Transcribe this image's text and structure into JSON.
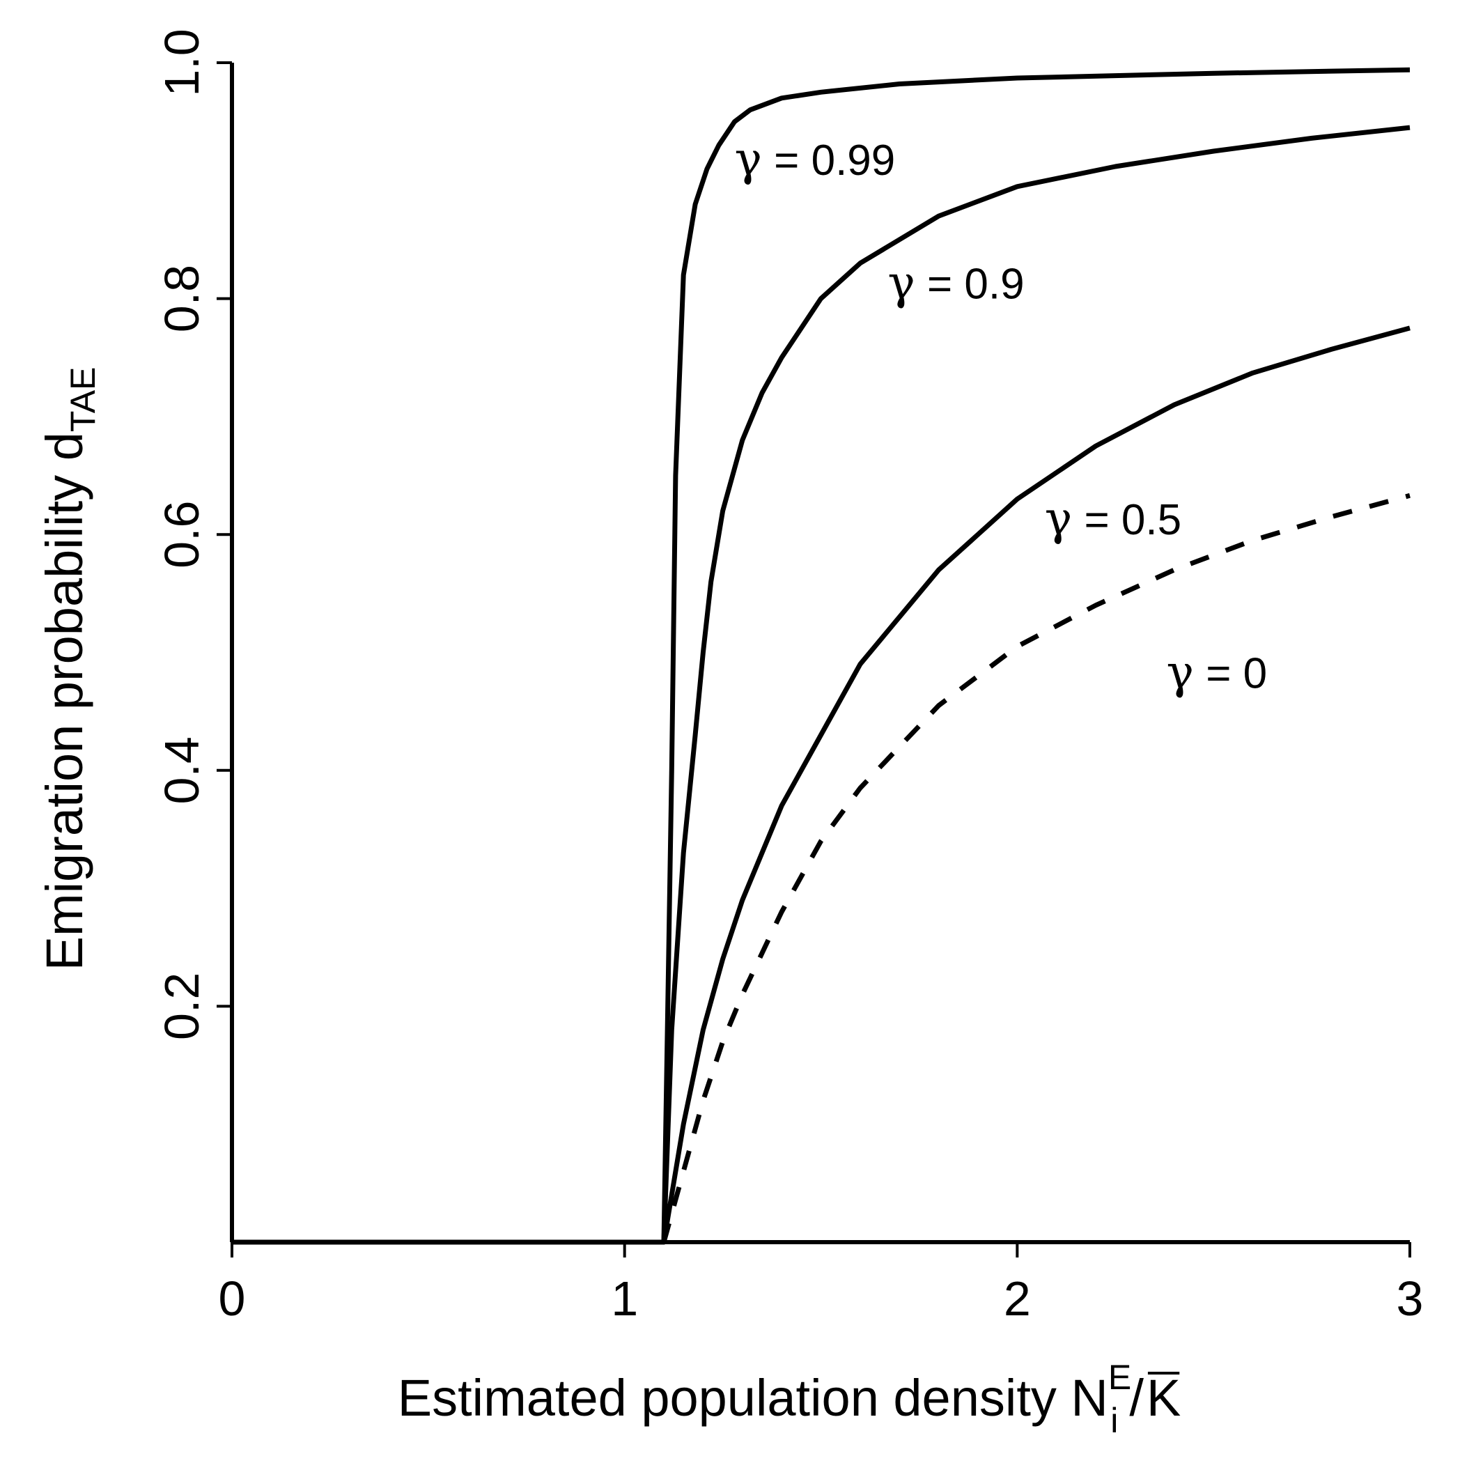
{
  "chart_data": {
    "type": "line",
    "xlabel": {
      "text": "Estimated population density N",
      "sub": "i",
      "sup": "E",
      "slash": "/",
      "kbar": "K"
    },
    "ylabel": {
      "text": "Emigration probability d",
      "sub": "TAE"
    },
    "xlim": [
      0,
      3
    ],
    "ylim": [
      0,
      1
    ],
    "x_ticks": [
      {
        "value": 0,
        "label": "0"
      },
      {
        "value": 1,
        "label": "1"
      },
      {
        "value": 2,
        "label": "2"
      },
      {
        "value": 3,
        "label": "3"
      }
    ],
    "y_ticks": [
      {
        "value": 0.2,
        "label": "0.2"
      },
      {
        "value": 0.4,
        "label": "0.4"
      },
      {
        "value": 0.6,
        "label": "0.6"
      },
      {
        "value": 0.8,
        "label": "0.8"
      },
      {
        "value": 1.0,
        "label": "1.0"
      }
    ],
    "grid": false,
    "legend": "none",
    "series": [
      {
        "name": "γ = 0.99",
        "gamma_symbol": "γ",
        "label_text": " = 0.99",
        "dash": "solid",
        "label_at": [
          1.28,
          0.905
        ],
        "x": [
          0,
          1.1,
          1.11,
          1.12,
          1.13,
          1.15,
          1.18,
          1.21,
          1.24,
          1.28,
          1.32,
          1.4,
          1.5,
          1.7,
          2.0,
          2.5,
          3.0
        ],
        "y": [
          0,
          0,
          0.2,
          0.4,
          0.65,
          0.82,
          0.88,
          0.91,
          0.93,
          0.95,
          0.96,
          0.97,
          0.975,
          0.982,
          0.987,
          0.991,
          0.994
        ]
      },
      {
        "name": "γ = 0.9",
        "gamma_symbol": "γ",
        "label_text": " = 0.9",
        "dash": "solid",
        "label_at": [
          1.67,
          0.8
        ],
        "x": [
          0,
          1.1,
          1.12,
          1.15,
          1.18,
          1.2,
          1.22,
          1.25,
          1.3,
          1.35,
          1.4,
          1.5,
          1.6,
          1.8,
          2.0,
          2.25,
          2.5,
          2.75,
          3.0
        ],
        "y": [
          0,
          0,
          0.18,
          0.33,
          0.43,
          0.5,
          0.56,
          0.62,
          0.68,
          0.72,
          0.75,
          0.8,
          0.83,
          0.87,
          0.895,
          0.912,
          0.925,
          0.936,
          0.945
        ]
      },
      {
        "name": "γ = 0.5",
        "gamma_symbol": "γ",
        "label_text": " = 0.5",
        "dash": "solid",
        "label_at": [
          2.07,
          0.6
        ],
        "x": [
          0,
          1.1,
          1.15,
          1.2,
          1.25,
          1.3,
          1.4,
          1.5,
          1.6,
          1.7,
          1.8,
          1.9,
          2.0,
          2.2,
          2.4,
          2.6,
          2.8,
          3.0
        ],
        "y": [
          0,
          0,
          0.1,
          0.18,
          0.24,
          0.29,
          0.37,
          0.43,
          0.49,
          0.53,
          0.57,
          0.6,
          0.63,
          0.675,
          0.71,
          0.737,
          0.757,
          0.775
        ]
      },
      {
        "name": "γ = 0",
        "gamma_symbol": "γ",
        "label_text": " = 0",
        "dash": "dashed",
        "label_at": [
          2.38,
          0.47
        ],
        "x": [
          1.1,
          1.15,
          1.2,
          1.25,
          1.3,
          1.4,
          1.5,
          1.6,
          1.7,
          1.8,
          1.9,
          2.0,
          2.2,
          2.4,
          2.6,
          2.8,
          3.0
        ],
        "y": [
          0,
          0.06,
          0.12,
          0.17,
          0.21,
          0.28,
          0.34,
          0.385,
          0.42,
          0.455,
          0.48,
          0.505,
          0.54,
          0.57,
          0.595,
          0.615,
          0.633
        ]
      }
    ]
  }
}
